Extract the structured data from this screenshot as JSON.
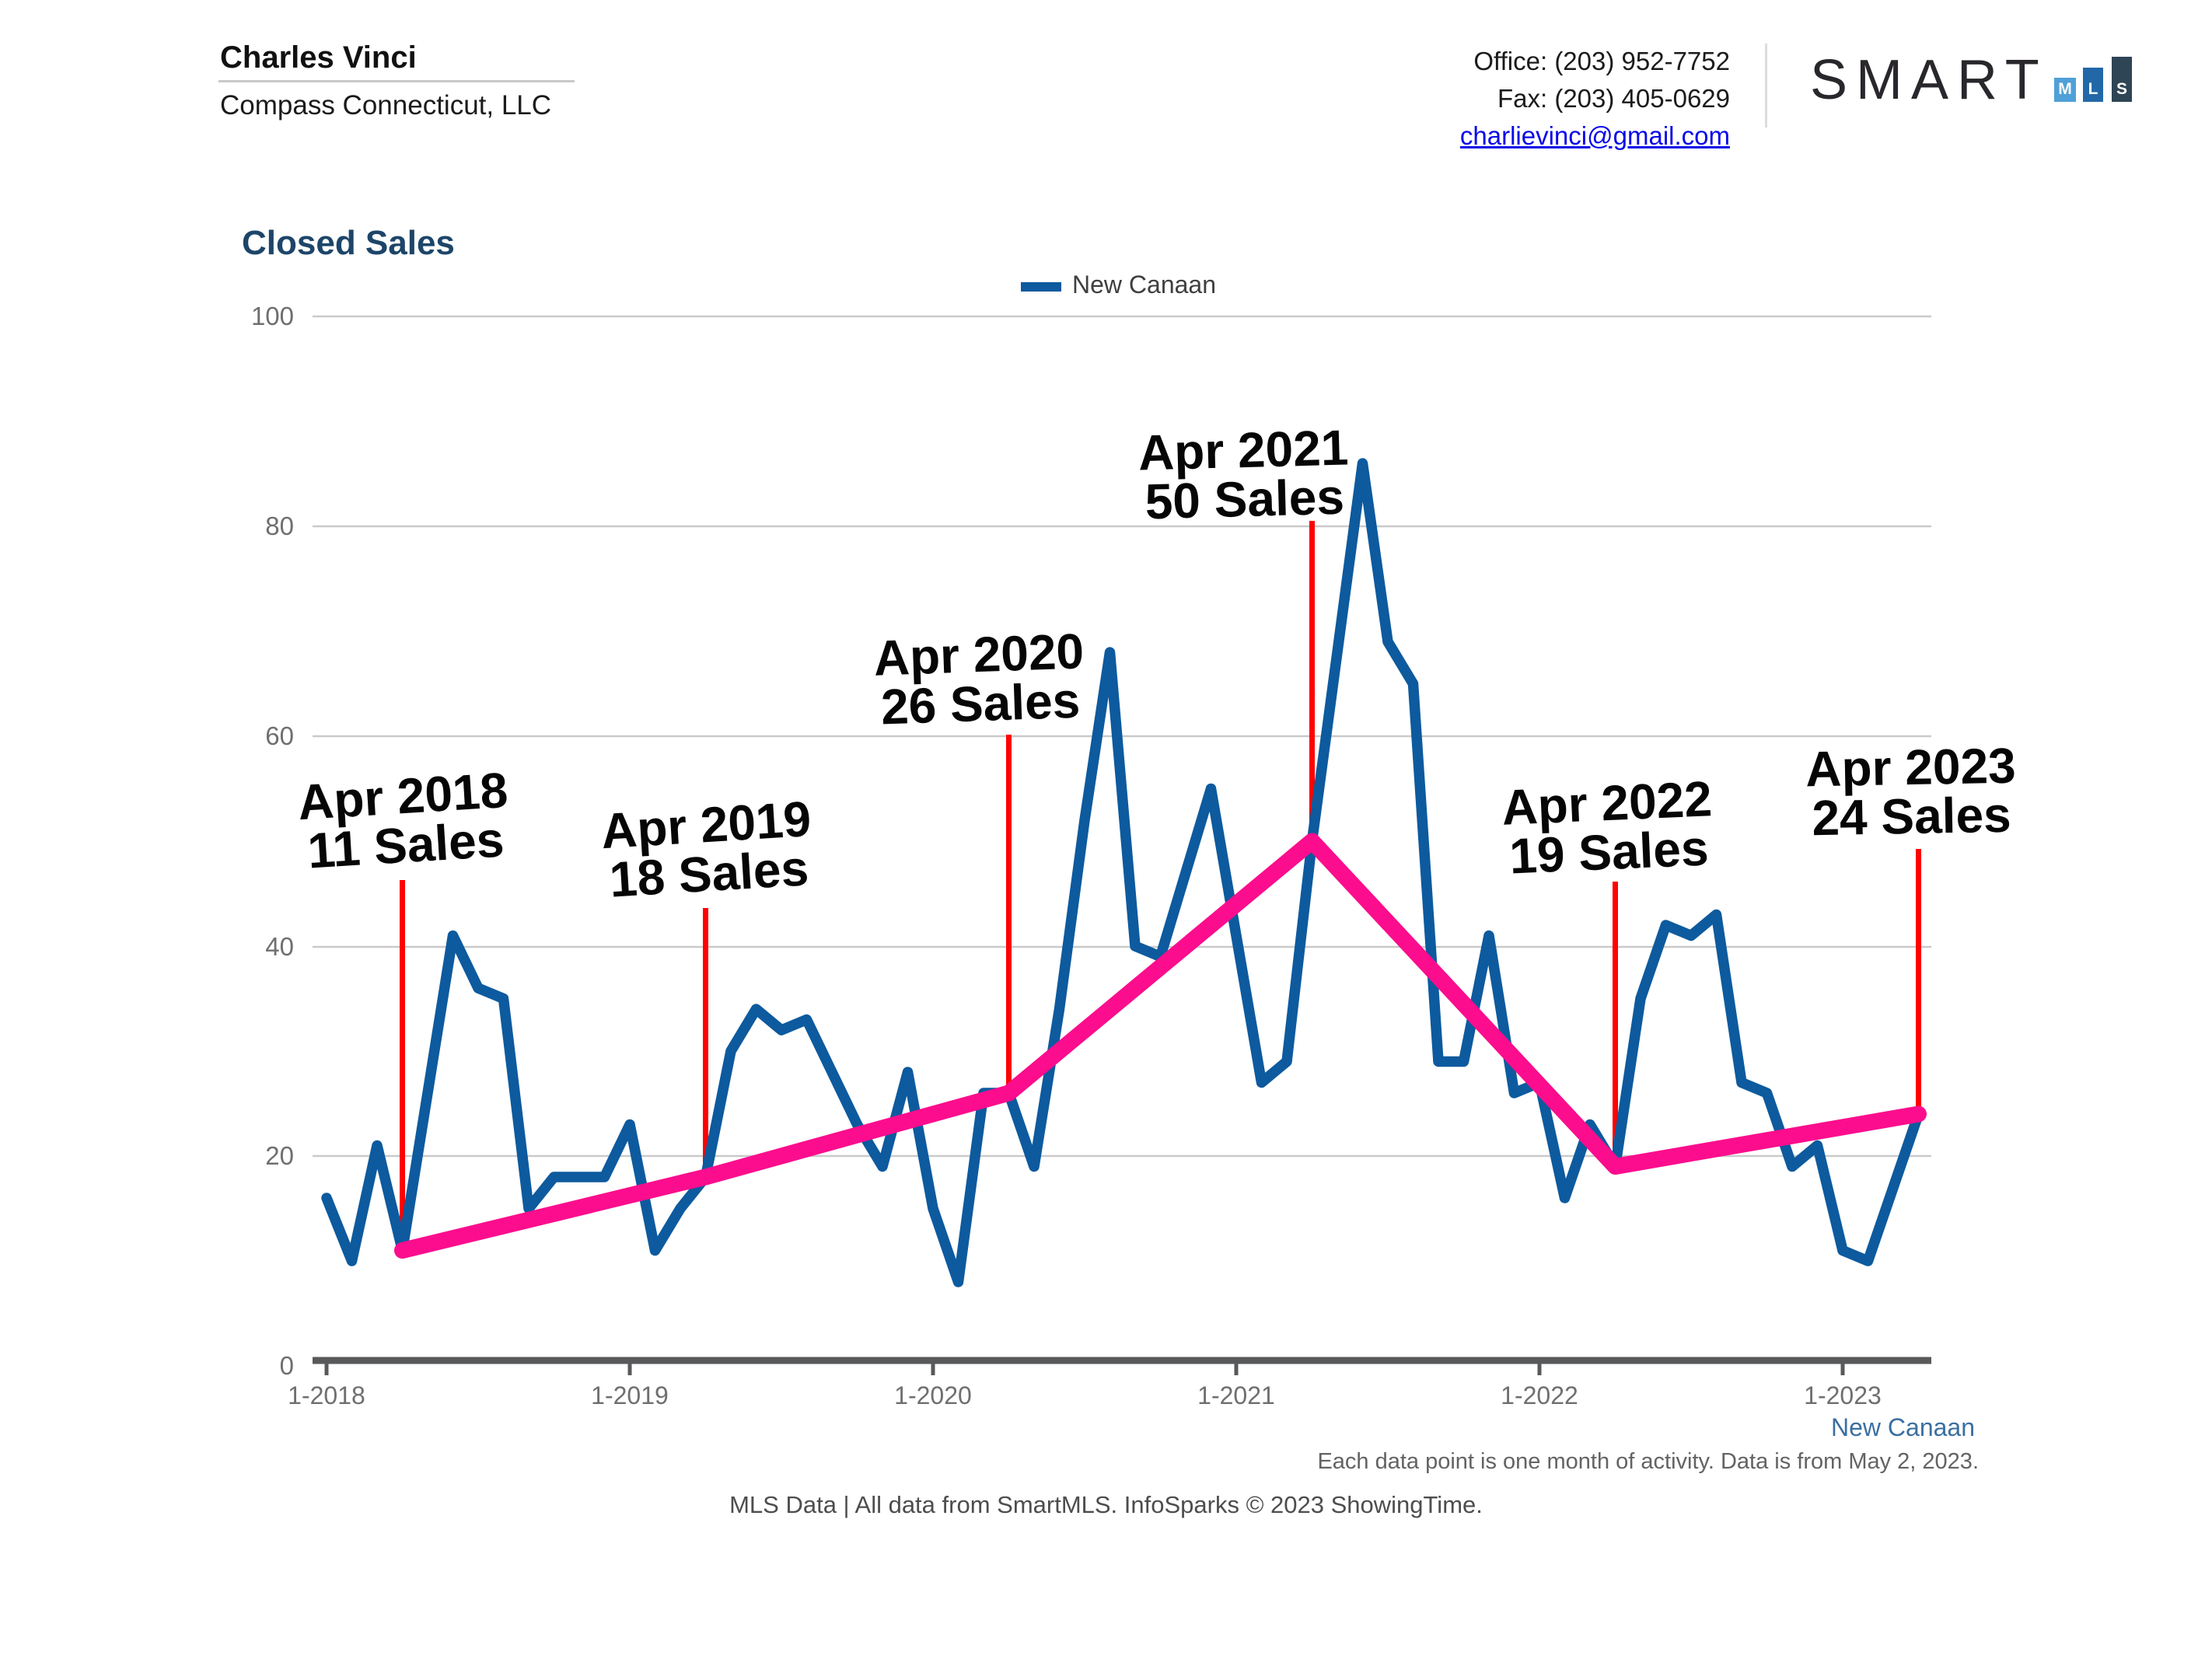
{
  "header": {
    "agent_name": "Charles Vinci",
    "company": "Compass Connecticut, LLC",
    "office_phone": "Office: (203) 952-7752",
    "fax": "Fax: (203) 405-0629",
    "email": "charlievinci@gmail.com",
    "logo": {
      "text": "SMART",
      "blocks": [
        {
          "letter": "M",
          "color": "#4fa0d8"
        },
        {
          "letter": "L",
          "color": "#2268a8"
        },
        {
          "letter": "S",
          "color": "#2e4555"
        }
      ]
    }
  },
  "chart": {
    "title": "Closed Sales",
    "legend_label": "New Canaan"
  },
  "chart_data": {
    "type": "line",
    "title": "Closed Sales",
    "series_name": "New Canaan",
    "frequency": "monthly",
    "x_range": [
      "2018-01",
      "2023-04"
    ],
    "x_tick_labels": [
      "1-2018",
      "1-2019",
      "1-2020",
      "1-2021",
      "1-2022",
      "1-2023"
    ],
    "y_ticks": [
      0,
      20,
      40,
      60,
      80,
      100
    ],
    "ylim": [
      0,
      100
    ],
    "grid": true,
    "legend_position": "top-center",
    "series": [
      {
        "name": "New Canaan",
        "color": "#0d5a9e",
        "values": [
          16,
          10,
          21,
          11,
          26,
          41,
          36,
          35,
          15,
          18,
          18,
          18,
          23,
          11,
          15,
          18,
          30,
          34,
          32,
          33,
          28,
          23,
          19,
          28,
          15,
          8,
          26,
          26,
          19,
          34,
          52,
          68,
          40,
          39,
          47,
          55,
          41,
          27,
          29,
          50,
          68,
          86,
          69,
          65,
          29,
          29,
          41,
          26,
          27,
          16,
          23,
          19,
          35,
          42,
          41,
          43,
          27,
          26,
          19,
          21,
          11,
          10,
          17,
          24
        ]
      }
    ],
    "trend": {
      "name": "April-to-April trend",
      "color": "#fb0d8d",
      "points": [
        [
          3,
          11
        ],
        [
          15,
          18
        ],
        [
          27,
          26
        ],
        [
          39,
          50
        ],
        [
          51,
          19
        ],
        [
          63,
          24
        ]
      ]
    },
    "annotation_color": "#fe0101",
    "annotations": [
      {
        "line1": "Apr 2018",
        "line2": "11 Sales",
        "month_index": 3,
        "value": 11
      },
      {
        "line1": "Apr 2019",
        "line2": "18 Sales",
        "month_index": 15,
        "value": 18
      },
      {
        "line1": "Apr 2020",
        "line2": "26 Sales",
        "month_index": 27,
        "value": 26
      },
      {
        "line1": "Apr 2021",
        "line2": "50 Sales",
        "month_index": 39,
        "value": 50
      },
      {
        "line1": "Apr 2022",
        "line2": "19 Sales",
        "month_index": 51,
        "value": 19
      },
      {
        "line1": "Apr 2023",
        "line2": "24 Sales",
        "month_index": 63,
        "value": 24
      }
    ]
  },
  "footer": {
    "series_label": "New Canaan",
    "note": "Each data point is one month of activity. Data is from May 2, 2023.",
    "credit": "MLS Data | All data from SmartMLS. InfoSparks © 2023 ShowingTime."
  }
}
